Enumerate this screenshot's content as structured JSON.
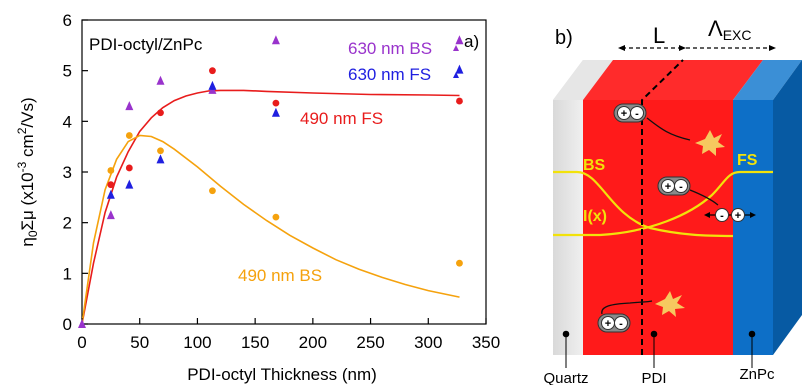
{
  "chart_data": [
    {
      "type": "scatter",
      "panel_label": "a)",
      "inset_title": "PDI-octyl/ZnPc",
      "xlabel": "PDI-octyl Thickness (nm)",
      "ylabel_parts": {
        "a": "η",
        "b": "0",
        "c": "Σμ (x10",
        "d": "-3",
        "e": " cm",
        "f": "2",
        "g": "/Vs)"
      },
      "xlim": [
        0,
        350
      ],
      "ylim": [
        0,
        6
      ],
      "xticks": [
        0,
        50,
        100,
        150,
        200,
        250,
        300,
        350
      ],
      "yticks": [
        0,
        1,
        2,
        3,
        4,
        5,
        6
      ],
      "grid": false,
      "series": [
        {
          "name": "630 nm BS",
          "marker": "triangle",
          "color": "#9933cc",
          "points": [
            [
              0,
              0.0
            ],
            [
              25,
              2.15
            ],
            [
              41,
              4.3
            ],
            [
              68,
              4.8
            ],
            [
              113,
              4.62
            ],
            [
              168,
              5.6
            ],
            [
              327,
              5.6
            ]
          ]
        },
        {
          "name": "630 nm FS",
          "marker": "triangle",
          "color": "#1f1fe0",
          "points": [
            [
              25,
              2.55
            ],
            [
              41,
              2.75
            ],
            [
              68,
              3.25
            ],
            [
              113,
              4.7
            ],
            [
              168,
              4.17
            ],
            [
              327,
              5.02
            ]
          ]
        },
        {
          "name": "490 nm FS",
          "marker": "circle",
          "color": "#e81c1c",
          "points": [
            [
              25,
              2.75
            ],
            [
              41,
              3.08
            ],
            [
              68,
              4.17
            ],
            [
              113,
              5.0
            ],
            [
              168,
              4.36
            ],
            [
              327,
              4.4
            ]
          ],
          "fit": [
            [
              0,
              0
            ],
            [
              10,
              1.2
            ],
            [
              20,
              2.2
            ],
            [
              30,
              2.9
            ],
            [
              40,
              3.4
            ],
            [
              50,
              3.8
            ],
            [
              60,
              4.07
            ],
            [
              70,
              4.27
            ],
            [
              80,
              4.41
            ],
            [
              90,
              4.5
            ],
            [
              100,
              4.56
            ],
            [
              110,
              4.6
            ],
            [
              120,
              4.61
            ],
            [
              140,
              4.61
            ],
            [
              160,
              4.59
            ],
            [
              200,
              4.56
            ],
            [
              250,
              4.53
            ],
            [
              300,
              4.52
            ],
            [
              327,
              4.51
            ]
          ]
        },
        {
          "name": "490 nm BS",
          "marker": "circle",
          "color": "#f5a20d",
          "points": [
            [
              25,
              3.03
            ],
            [
              41,
              3.72
            ],
            [
              68,
              3.42
            ],
            [
              113,
              2.63
            ],
            [
              168,
              2.11
            ],
            [
              327,
              1.2
            ]
          ],
          "fit": [
            [
              0,
              0
            ],
            [
              10,
              1.6
            ],
            [
              20,
              2.65
            ],
            [
              30,
              3.25
            ],
            [
              40,
              3.6
            ],
            [
              50,
              3.72
            ],
            [
              60,
              3.7
            ],
            [
              70,
              3.6
            ],
            [
              80,
              3.45
            ],
            [
              100,
              3.1
            ],
            [
              120,
              2.72
            ],
            [
              140,
              2.36
            ],
            [
              160,
              2.04
            ],
            [
              180,
              1.75
            ],
            [
              200,
              1.5
            ],
            [
              220,
              1.27
            ],
            [
              240,
              1.08
            ],
            [
              260,
              0.92
            ],
            [
              280,
              0.78
            ],
            [
              300,
              0.66
            ],
            [
              327,
              0.53
            ]
          ]
        }
      ],
      "legend": [
        {
          "text": "630 nm BS",
          "color": "#9933cc",
          "marker": "triangle"
        },
        {
          "text": "630 nm FS",
          "color": "#1f1fe0",
          "marker": "triangle"
        }
      ],
      "annotations": [
        {
          "text": "490 nm FS",
          "color": "#e81c1c"
        },
        {
          "text": "490 nm BS",
          "color": "#f5a20d"
        }
      ]
    }
  ],
  "diagram": {
    "panel_label": "b)",
    "dim_L": "L",
    "dim_exc_main": "Λ",
    "dim_exc_sub": "EXC",
    "label_bs": "BS",
    "label_fs": "FS",
    "label_ix": "I(x)",
    "layers": {
      "quartz": "Quartz",
      "pdi": "PDI",
      "znpc": "ZnPc"
    },
    "pair_plus": "+",
    "pair_minus": "-",
    "colors": {
      "pdi": "#ff1a1a",
      "znpc": "#0d6fc7",
      "quartz": "#ececec",
      "curve": "#f2e20a"
    }
  }
}
